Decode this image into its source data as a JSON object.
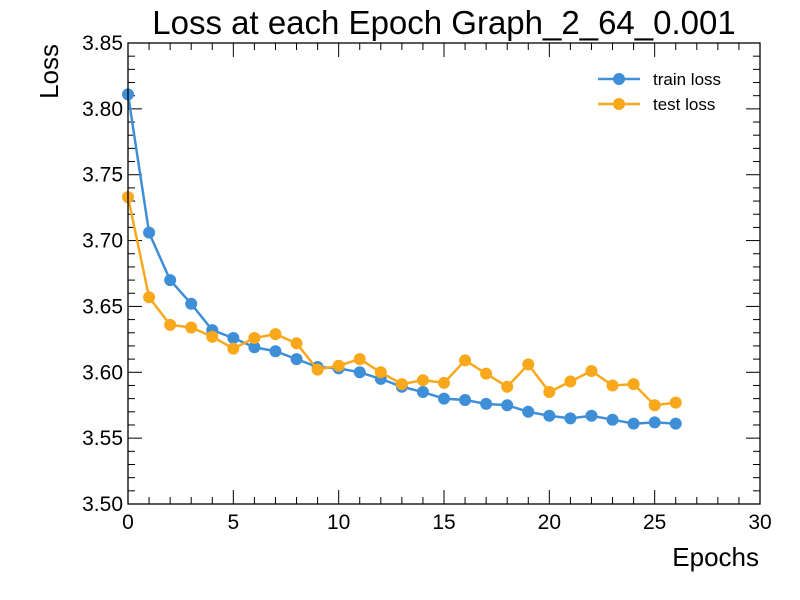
{
  "chart_data": {
    "type": "line",
    "title": "Loss at each Epoch Graph_2_64_0.001",
    "xlabel": "Epochs",
    "ylabel": "Loss",
    "xlim": [
      0,
      30
    ],
    "ylim": [
      3.5,
      3.85
    ],
    "xticks": [
      0,
      5,
      10,
      15,
      20,
      25,
      30
    ],
    "xtick_labels": [
      "0",
      "5",
      "10",
      "15",
      "20",
      "25",
      "30"
    ],
    "yticks": [
      3.5,
      3.55,
      3.6,
      3.65,
      3.7,
      3.75,
      3.8,
      3.85
    ],
    "ytick_labels": [
      "3.50",
      "3.55",
      "3.60",
      "3.65",
      "3.70",
      "3.75",
      "3.80",
      "3.85"
    ],
    "grid": false,
    "legend_position": "top-right",
    "x": [
      0,
      1,
      2,
      3,
      4,
      5,
      6,
      7,
      8,
      9,
      10,
      11,
      12,
      13,
      14,
      15,
      16,
      17,
      18,
      19,
      20,
      21,
      22,
      23,
      24,
      25,
      26
    ],
    "series": [
      {
        "name": "train loss",
        "color": "#3f8fd8",
        "values": [
          3.811,
          3.706,
          3.67,
          3.652,
          3.632,
          3.626,
          3.619,
          3.616,
          3.61,
          3.604,
          3.603,
          3.6,
          3.595,
          3.589,
          3.585,
          3.58,
          3.579,
          3.576,
          3.575,
          3.57,
          3.567,
          3.565,
          3.567,
          3.564,
          3.561,
          3.562,
          3.561
        ]
      },
      {
        "name": "test loss",
        "color": "#f9a81b",
        "values": [
          3.733,
          3.657,
          3.636,
          3.634,
          3.627,
          3.618,
          3.626,
          3.629,
          3.622,
          3.602,
          3.605,
          3.61,
          3.6,
          3.591,
          3.594,
          3.592,
          3.609,
          3.599,
          3.589,
          3.606,
          3.585,
          3.593,
          3.601,
          3.59,
          3.591,
          3.575,
          3.577
        ]
      }
    ]
  }
}
